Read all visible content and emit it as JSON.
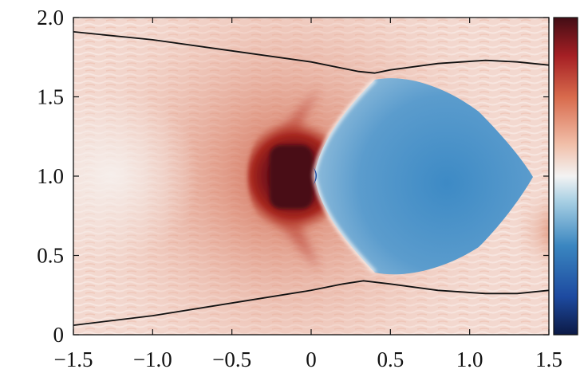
{
  "chart_data": {
    "type": "heatmap",
    "title": "",
    "xlabel": "",
    "ylabel": "",
    "xlim": [
      -1.5,
      1.5
    ],
    "ylim": [
      0,
      2.0
    ],
    "x_ticks": [
      {
        "value": -1.5,
        "label": "−1.5"
      },
      {
        "value": -1.0,
        "label": "−1.0"
      },
      {
        "value": -0.5,
        "label": "−0.5"
      },
      {
        "value": 0,
        "label": "0"
      },
      {
        "value": 0.5,
        "label": "0.5"
      },
      {
        "value": 1.0,
        "label": "1.0"
      },
      {
        "value": 1.5,
        "label": "1.5"
      }
    ],
    "y_ticks": [
      {
        "value": 0,
        "label": "0"
      },
      {
        "value": 0.5,
        "label": "0.5"
      },
      {
        "value": 1.0,
        "label": "1.0"
      },
      {
        "value": 1.5,
        "label": "1.5"
      },
      {
        "value": 2.0,
        "label": "2.0"
      }
    ],
    "grid": false,
    "colorbar": {
      "position": "right",
      "colormap": [
        "#0c1a45",
        "#1d4aa0",
        "#3a86c0",
        "#a7cfe3",
        "#f3f3f3",
        "#f1bfa9",
        "#d86a4c",
        "#a51f24",
        "#430d15"
      ],
      "tick_labels": []
    },
    "field_features": {
      "background_color": "#f3d8cf",
      "red_core_center": [
        -0.1,
        1.0
      ],
      "blue_region_x_range": [
        0.0,
        1.45
      ],
      "blue_region_y_range": [
        0.35,
        1.65
      ],
      "red_color": "#5a0a12",
      "blue_color": "#4b93c7"
    },
    "series": [
      {
        "type": "line",
        "color": "#111111",
        "points": [
          [
            -1.5,
            1.91
          ],
          [
            -1.0,
            1.86
          ],
          [
            -0.5,
            1.79
          ],
          [
            0.0,
            1.72
          ],
          [
            0.3,
            1.66
          ],
          [
            0.4,
            1.65
          ],
          [
            0.5,
            1.67
          ],
          [
            0.8,
            1.71
          ],
          [
            1.1,
            1.73
          ],
          [
            1.3,
            1.72
          ],
          [
            1.5,
            1.7
          ]
        ]
      },
      {
        "type": "line",
        "color": "#111111",
        "points": [
          [
            -1.5,
            0.06
          ],
          [
            -1.0,
            0.12
          ],
          [
            -0.5,
            0.2
          ],
          [
            0.0,
            0.28
          ],
          [
            0.2,
            0.32
          ],
          [
            0.33,
            0.34
          ],
          [
            0.5,
            0.32
          ],
          [
            0.8,
            0.28
          ],
          [
            1.1,
            0.26
          ],
          [
            1.3,
            0.26
          ],
          [
            1.5,
            0.28
          ]
        ]
      }
    ]
  }
}
